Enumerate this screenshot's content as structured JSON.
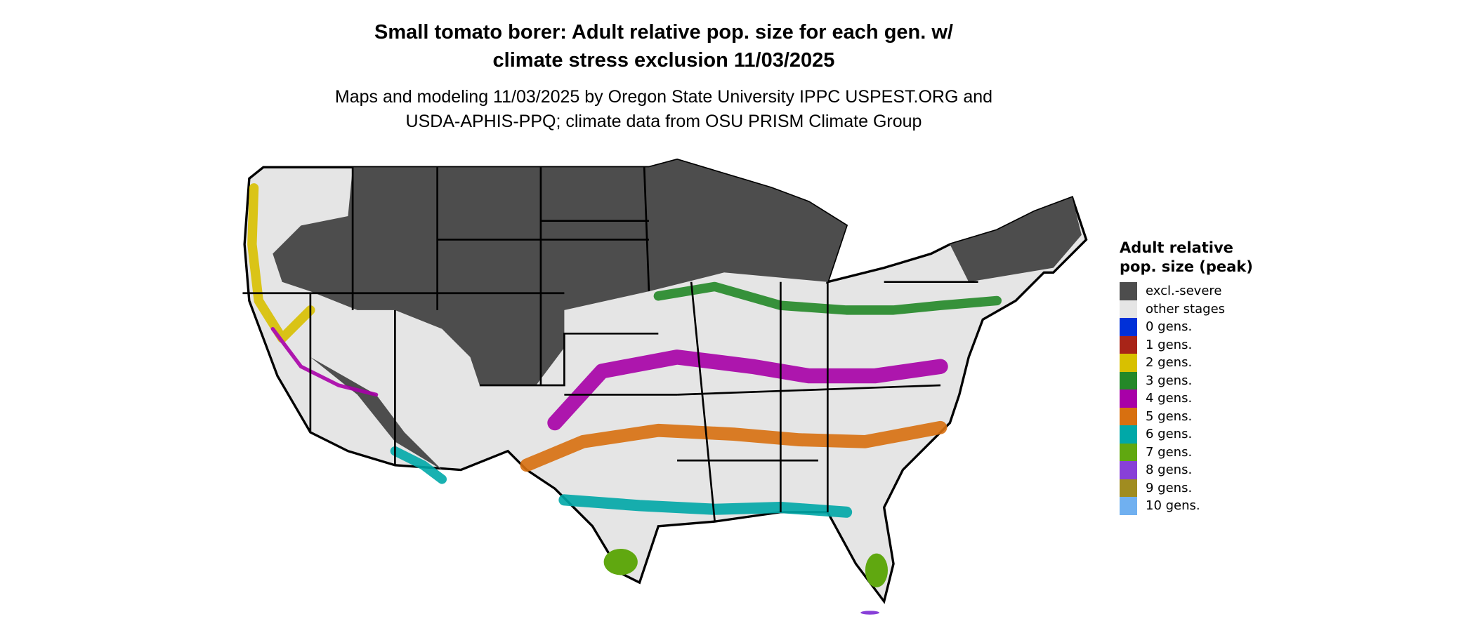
{
  "title": "Small tomato borer: Adult relative pop. size for each gen. w/ climate stress exclusion 11/03/2025",
  "title_lines": [
    "Small tomato borer: Adult relative pop. size for each gen. w/",
    "climate stress exclusion 11/03/2025"
  ],
  "subtitle_lines": [
    "Maps and modeling 11/03/2025 by Oregon State University IPPC USPEST.ORG and",
    "USDA-APHIS-PPQ; climate data from OSU PRISM Climate Group"
  ],
  "legend": {
    "title": "Adult relative pop. size (peak)",
    "items": [
      {
        "label": "excl.-severe",
        "color": "#4d4d4d"
      },
      {
        "label": "other stages",
        "color": "#e5e5e5"
      },
      {
        "label": "0 gens.",
        "color": "#0030d8"
      },
      {
        "label": "1 gens.",
        "color": "#a82418"
      },
      {
        "label": "2 gens.",
        "color": "#d8c000"
      },
      {
        "label": "3 gens.",
        "color": "#248828"
      },
      {
        "label": "4 gens.",
        "color": "#a800a8"
      },
      {
        "label": "5 gens.",
        "color": "#d87010"
      },
      {
        "label": "6 gens.",
        "color": "#00a8a8"
      },
      {
        "label": "7 gens.",
        "color": "#60a810"
      },
      {
        "label": "8 gens.",
        "color": "#8840d8"
      },
      {
        "label": "9 gens.",
        "color": "#a08c20"
      },
      {
        "label": "10 gens.",
        "color": "#70b0f0"
      }
    ]
  }
}
